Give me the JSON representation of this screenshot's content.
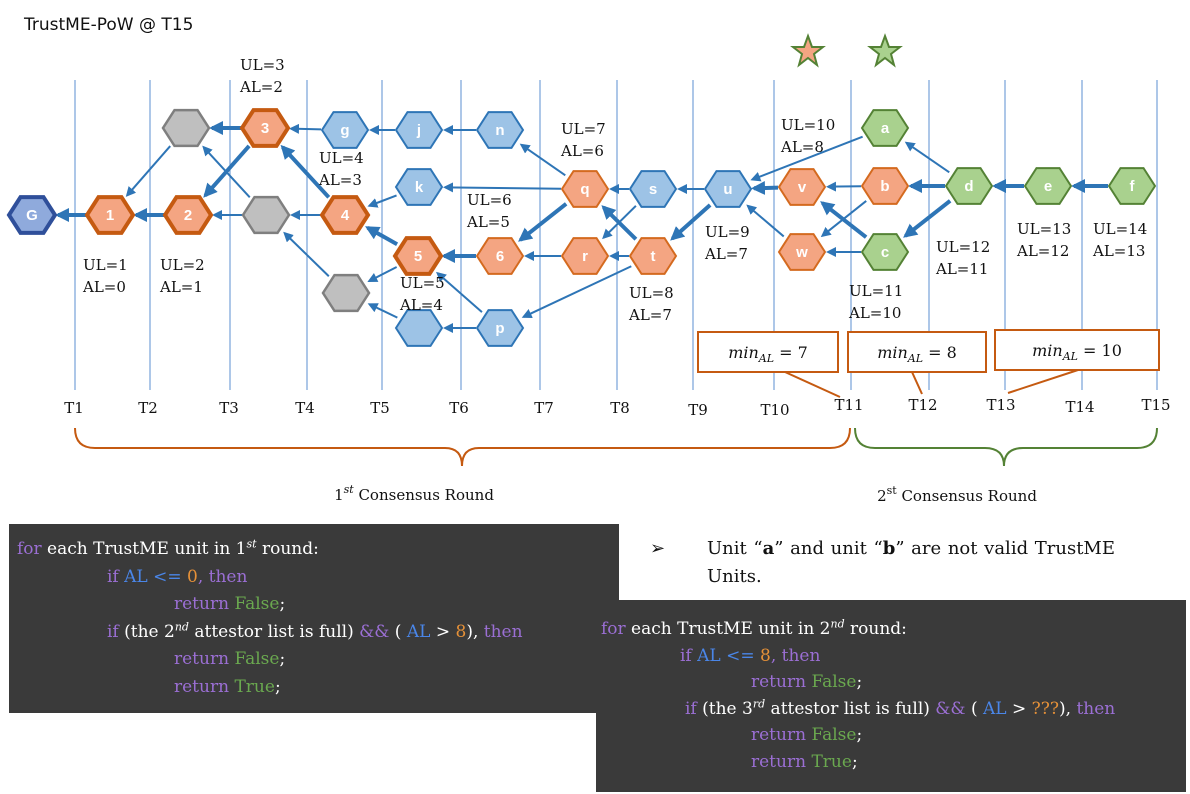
{
  "title": "TrustME-PoW @ T15",
  "timeline": [
    "T1",
    "T2",
    "T3",
    "T4",
    "T5",
    "T6",
    "T7",
    "T8",
    "T9",
    "T10",
    "T11",
    "T12",
    "T13",
    "T14",
    "T15"
  ],
  "units": [
    {
      "id": "G",
      "label": "G",
      "color": "blue-dark"
    },
    {
      "id": "1",
      "label": "1",
      "color": "orange-strong"
    },
    {
      "id": "2",
      "label": "2",
      "color": "orange-strong"
    },
    {
      "id": "3",
      "label": "3",
      "color": "orange-strong"
    },
    {
      "id": "4",
      "label": "4",
      "color": "orange-strong"
    },
    {
      "id": "5",
      "label": "5",
      "color": "orange-strong"
    },
    {
      "id": "6",
      "label": "6",
      "color": "orange"
    },
    {
      "id": "gray1",
      "label": "",
      "color": "gray"
    },
    {
      "id": "gray2",
      "label": "",
      "color": "gray"
    },
    {
      "id": "gray3",
      "label": "",
      "color": "gray"
    },
    {
      "id": "g",
      "label": "g",
      "color": "blue"
    },
    {
      "id": "j",
      "label": "j",
      "color": "blue"
    },
    {
      "id": "n",
      "label": "n",
      "color": "blue"
    },
    {
      "id": "k",
      "label": "k",
      "color": "blue"
    },
    {
      "id": "p",
      "label": "p",
      "color": "blue"
    },
    {
      "id": "bl",
      "label": "",
      "color": "blue"
    },
    {
      "id": "q",
      "label": "q",
      "color": "orange"
    },
    {
      "id": "r",
      "label": "r",
      "color": "orange"
    },
    {
      "id": "t",
      "label": "t",
      "color": "orange"
    },
    {
      "id": "s",
      "label": "s",
      "color": "blue"
    },
    {
      "id": "u",
      "label": "u",
      "color": "blue"
    },
    {
      "id": "v",
      "label": "v",
      "color": "orange"
    },
    {
      "id": "w",
      "label": "w",
      "color": "orange"
    },
    {
      "id": "a",
      "label": "a",
      "color": "green"
    },
    {
      "id": "b",
      "label": "b",
      "color": "orange"
    },
    {
      "id": "c",
      "label": "c",
      "color": "green"
    },
    {
      "id": "d",
      "label": "d",
      "color": "green"
    },
    {
      "id": "e",
      "label": "e",
      "color": "green"
    },
    {
      "id": "f",
      "label": "f",
      "color": "green"
    }
  ],
  "annotations": [
    {
      "id": "u1",
      "line1": "UL=1",
      "line2": "AL=0"
    },
    {
      "id": "u2",
      "line1": "UL=2",
      "line2": "AL=1"
    },
    {
      "id": "u3",
      "line1": "UL=3",
      "line2": "AL=2"
    },
    {
      "id": "u4",
      "line1": "UL=4",
      "line2": "AL=3"
    },
    {
      "id": "u5",
      "line1": "UL=5",
      "line2": "AL=4"
    },
    {
      "id": "u6",
      "line1": "UL=6",
      "line2": "AL=5"
    },
    {
      "id": "u7",
      "line1": "UL=7",
      "line2": "AL=6"
    },
    {
      "id": "u8",
      "line1": "UL=8",
      "line2": "AL=7"
    },
    {
      "id": "u9",
      "line1": "UL=9",
      "line2": "AL=7"
    },
    {
      "id": "u10",
      "line1": "UL=10",
      "line2": "AL=8"
    },
    {
      "id": "u11",
      "line1": "UL=11",
      "line2": "AL=10"
    },
    {
      "id": "u12",
      "line1": "UL=12",
      "line2": "AL=11"
    },
    {
      "id": "u13",
      "line1": "UL=13",
      "line2": "AL=12"
    },
    {
      "id": "u14",
      "line1": "UL=14",
      "line2": "AL=13"
    }
  ],
  "min_al": [
    {
      "base": "min",
      "sub": "AL",
      "rest": " = 7"
    },
    {
      "base": "min",
      "sub": "AL",
      "rest": " = 8"
    },
    {
      "base": "min",
      "sub": "AL",
      "rest": " = 10"
    }
  ],
  "rounds": [
    {
      "prefix": "1",
      "sup": "st",
      "suffix": " Consensus Round"
    },
    {
      "prefix": "2",
      "sup": "st",
      "suffix": " Consensus Round"
    }
  ],
  "code1": {
    "l1_kw": "for",
    "l1_a": " each TrustME unit in 1",
    "l1_sup": "st",
    "l1_b": " round:",
    "l2_kw": "if",
    "l2_var": "AL",
    "l2_op": " <= ",
    "l2_num": "0",
    "l2_kw2": ", then",
    "l3_kw": "return",
    "l3_val": "False",
    ";": ";",
    "l4_kw": "if",
    "l4_a": " (the 2",
    "l4_sup": "nd",
    "l4_b": " attestor list is full) ",
    "l4_op": "&&",
    "l4_c": " ( ",
    "l4_var": "AL",
    "l4_op2": " > ",
    "l4_num": "8",
    "l4_d": "), ",
    "l4_kw2": "then",
    "l5_kw": "return",
    "l5_val": "False",
    "l6_kw": "return",
    "l6_val": "True"
  },
  "code2": {
    "l1_kw": "for",
    "l1_a": " each TrustME unit in 2",
    "l1_sup": "nd",
    "l1_b": " round:",
    "l2_kw": "if",
    "l2_var": "AL",
    "l2_op": " <= ",
    "l2_num": "8",
    "l2_kw2": ", then",
    "l3_kw": "return",
    "l3_val": "False",
    "l4_kw": "if",
    "l4_a": " (the 3",
    "l4_sup": "rd",
    "l4_b": " attestor list is full) ",
    "l4_op": "&&",
    "l4_c": " ( ",
    "l4_var": "AL",
    "l4_op2": " > ",
    "l4_num": "???",
    "l4_d": "), ",
    "l4_kw2": "then",
    "l5_kw": "return",
    "l5_val": "False",
    "l6_kw": "return",
    "l6_val": "True"
  },
  "note": {
    "arrow": "➢",
    "t1": "Unit “",
    "a": "a",
    "t2": "” and unit “",
    "b": "b",
    "t3": "” are not valid TrustME Units."
  },
  "colors": {
    "orange": "#f4a582",
    "orange_stroke": "#d46a1f",
    "orange_strong_stroke": "#c55a11",
    "blue": "#9dc3e6",
    "blue_stroke": "#2e75b6",
    "blue_dark": "#8faadc",
    "blue_dark_stroke": "#2f4f9a",
    "green": "#a9d18e",
    "green_stroke": "#548235",
    "gray": "#bfbfbf",
    "gray_stroke": "#7f7f7f",
    "edge": "#2e75b6",
    "timeline": "#5b8fd1",
    "brace_orange": "#c55a11",
    "brace_green": "#548235"
  }
}
